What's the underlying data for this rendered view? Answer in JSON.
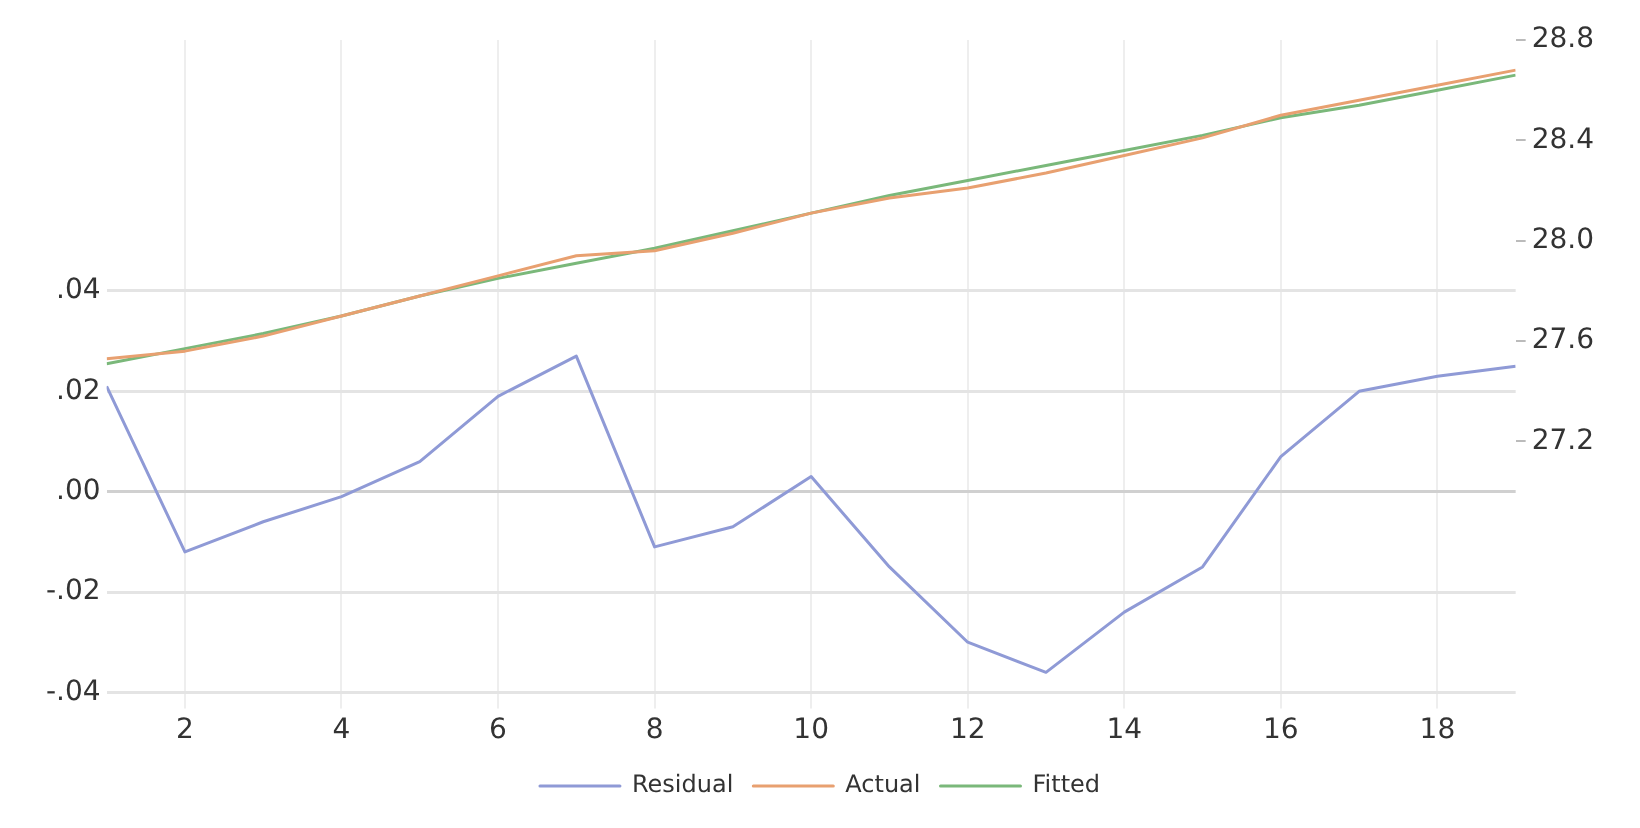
{
  "chart_data": {
    "type": "line",
    "x": [
      1,
      2,
      3,
      4,
      5,
      6,
      7,
      8,
      9,
      10,
      11,
      12,
      13,
      14,
      15,
      16,
      17,
      18,
      19
    ],
    "series": [
      {
        "name": "Residual",
        "color": "#8f9ad6",
        "values": [
          0.021,
          -0.012,
          -0.006,
          -0.001,
          0.006,
          0.019,
          0.027,
          -0.011,
          -0.007,
          0.003,
          -0.015,
          -0.03,
          -0.036,
          -0.024,
          -0.015,
          0.007,
          0.02,
          0.023,
          0.025
        ]
      },
      {
        "name": "Actual",
        "color": "#e8a070",
        "axis": "y2",
        "values": [
          27.53,
          27.56,
          27.62,
          27.7,
          27.78,
          27.86,
          27.94,
          27.96,
          28.03,
          28.11,
          28.17,
          28.21,
          28.27,
          28.34,
          28.41,
          28.5,
          28.56,
          28.62,
          28.68
        ]
      },
      {
        "name": "Fitted",
        "color": "#7ab87a",
        "axis": "y2",
        "values": [
          27.51,
          27.57,
          27.63,
          27.7,
          27.78,
          27.85,
          27.91,
          27.97,
          28.04,
          28.11,
          28.18,
          28.24,
          28.3,
          28.36,
          28.42,
          28.49,
          28.54,
          28.6,
          28.66
        ]
      }
    ],
    "xlim": [
      1,
      19
    ],
    "xticks": [
      2,
      4,
      6,
      8,
      10,
      12,
      14,
      16,
      18
    ],
    "ylim": [
      -0.04,
      0.09
    ],
    "yticks": [
      {
        "value": -0.04,
        "label": "-.04"
      },
      {
        "value": -0.02,
        "label": "-.02"
      },
      {
        "value": 0,
        "label": ".00"
      },
      {
        "value": 0.02,
        "label": ".02"
      },
      {
        "value": 0.04,
        "label": ".04"
      }
    ],
    "y2lim": [
      26.2,
      28.8
    ],
    "y2ticks": [
      {
        "value": 27.2,
        "label": "27.2"
      },
      {
        "value": 27.6,
        "label": "27.6"
      },
      {
        "value": 28.0,
        "label": "28.0"
      },
      {
        "value": 28.4,
        "label": "28.4"
      },
      {
        "value": 28.8,
        "label": "28.8"
      }
    ],
    "grid": true,
    "legend": "bottom",
    "marker": "none",
    "line_style": "solid"
  }
}
